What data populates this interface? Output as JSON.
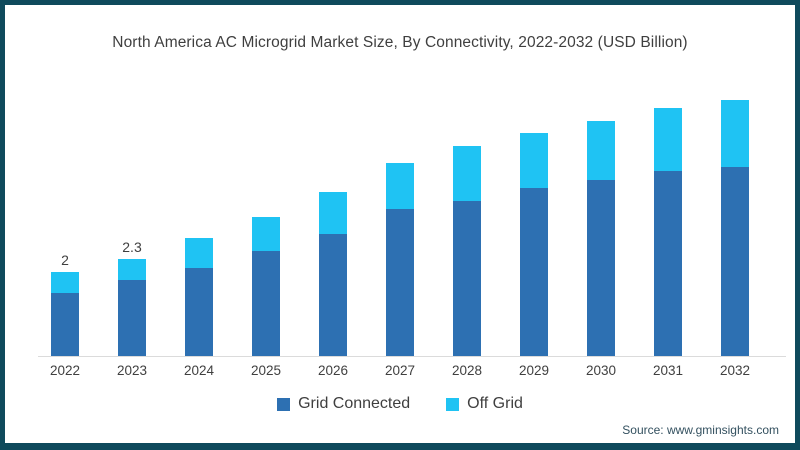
{
  "frame": {
    "border_color": "#0F4A5C",
    "background": "#FFFFFF"
  },
  "chart_data": {
    "type": "bar",
    "stacked": true,
    "title": "North America AC Microgrid Market Size, By Connectivity, 2022-2032 (USD Billion)",
    "categories": [
      "2022",
      "2023",
      "2024",
      "2025",
      "2026",
      "2027",
      "2028",
      "2029",
      "2030",
      "2031",
      "2032"
    ],
    "series": [
      {
        "name": "Grid Connected",
        "color": "#2D70B2",
        "values": [
          1.5,
          1.8,
          2.1,
          2.5,
          2.9,
          3.5,
          3.7,
          4.0,
          4.2,
          4.4,
          4.5
        ]
      },
      {
        "name": "Off Grid",
        "color": "#1FC3F3",
        "values": [
          0.5,
          0.5,
          0.7,
          0.8,
          1.0,
          1.1,
          1.3,
          1.3,
          1.4,
          1.5,
          1.6
        ]
      }
    ],
    "bar_total_labels": [
      "2",
      "2.3",
      "",
      "",
      "",
      "",
      "",
      "",
      "",
      "",
      ""
    ],
    "totals": [
      2.0,
      2.3,
      2.8,
      3.3,
      3.9,
      4.6,
      5.0,
      5.3,
      5.6,
      5.9,
      6.1
    ],
    "xlabel": "",
    "ylabel": "",
    "ylim": [
      0,
      6.5
    ],
    "y_axis_visible": false,
    "grid": false,
    "legend_position": "bottom",
    "label_color": "#3F3F3F",
    "axis_line_color": "#DBDBDB"
  },
  "footer": {
    "source": "Source: www.gminsights.com"
  }
}
